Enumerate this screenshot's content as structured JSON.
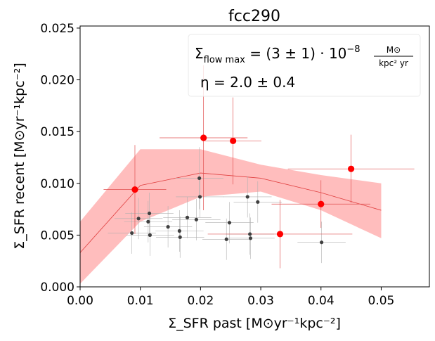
{
  "chart_data": {
    "type": "scatter",
    "title": "fcc290",
    "xlabel": "Σ_SFR past [M⊙yr⁻¹kpc⁻²]",
    "ylabel": "Σ_SFR recent [M⊙yr⁻¹kpc⁻²]",
    "xlim": [
      0.0,
      0.058
    ],
    "ylim": [
      0.0,
      0.0252
    ],
    "xticks": [
      "0.00",
      "0.01",
      "0.02",
      "0.03",
      "0.04",
      "0.05"
    ],
    "yticks": [
      "0.000",
      "0.005",
      "0.010",
      "0.015",
      "0.020",
      "0.025"
    ],
    "annotation": {
      "formula_prefix": "Σ",
      "formula_sub": "flow max",
      "formula_mid": " = (3 ± 1) · 10",
      "formula_exp": "−8",
      "formula_num": "M⊙",
      "formula_den": "kpc² yr",
      "eta_text": "η = 2.0 ± 0.4"
    },
    "model_line": {
      "x": [
        0.0,
        0.01,
        0.02,
        0.03,
        0.04,
        0.05
      ],
      "y": [
        0.0033,
        0.0098,
        0.011,
        0.0105,
        0.0091,
        0.0074
      ]
    },
    "model_band": {
      "x": [
        0.0,
        0.01,
        0.02,
        0.03,
        0.04,
        0.05
      ],
      "upper": [
        0.0063,
        0.0133,
        0.0133,
        0.0118,
        0.0108,
        0.01
      ],
      "lower": [
        0.0003,
        0.0063,
        0.0087,
        0.0092,
        0.0074,
        0.0047
      ]
    },
    "series": [
      {
        "name": "red points",
        "color": "#ff0000",
        "points": [
          {
            "x": 0.0091,
            "y": 0.0094,
            "xerr": 0.0052,
            "yerr": 0.0043
          },
          {
            "x": 0.0205,
            "y": 0.0144,
            "xerr": 0.0073,
            "yerr": 0.007
          },
          {
            "x": 0.0254,
            "y": 0.0141,
            "xerr": 0.0047,
            "yerr": 0.0042
          },
          {
            "x": 0.0332,
            "y": 0.0051,
            "xerr": 0.012,
            "yerr": 0.0033
          },
          {
            "x": 0.04,
            "y": 0.008,
            "xerr": 0.0082,
            "yerr": 0.0023
          },
          {
            "x": 0.045,
            "y": 0.0114,
            "xerr": 0.0105,
            "yerr": 0.0033
          }
        ]
      },
      {
        "name": "grey points",
        "color": "#404040",
        "points": [
          {
            "x": 0.0086,
            "y": 0.0052,
            "xerr": 0.004,
            "yerr": 0.002
          },
          {
            "x": 0.0097,
            "y": 0.0066,
            "xerr": 0.004,
            "yerr": 0.002
          },
          {
            "x": 0.0113,
            "y": 0.0063,
            "xerr": 0.004,
            "yerr": 0.002
          },
          {
            "x": 0.0115,
            "y": 0.0071,
            "xerr": 0.004,
            "yerr": 0.002
          },
          {
            "x": 0.0116,
            "y": 0.005,
            "xerr": 0.004,
            "yerr": 0.002
          },
          {
            "x": 0.0146,
            "y": 0.0058,
            "xerr": 0.004,
            "yerr": 0.002
          },
          {
            "x": 0.0165,
            "y": 0.0054,
            "xerr": 0.004,
            "yerr": 0.002
          },
          {
            "x": 0.0166,
            "y": 0.0048,
            "xerr": 0.004,
            "yerr": 0.002
          },
          {
            "x": 0.0178,
            "y": 0.0067,
            "xerr": 0.004,
            "yerr": 0.002
          },
          {
            "x": 0.0193,
            "y": 0.0065,
            "xerr": 0.004,
            "yerr": 0.002
          },
          {
            "x": 0.0198,
            "y": 0.0105,
            "xerr": 0.004,
            "yerr": 0.003
          },
          {
            "x": 0.0199,
            "y": 0.0087,
            "xerr": 0.004,
            "yerr": 0.002
          },
          {
            "x": 0.0243,
            "y": 0.0046,
            "xerr": 0.004,
            "yerr": 0.002
          },
          {
            "x": 0.0248,
            "y": 0.0062,
            "xerr": 0.004,
            "yerr": 0.002
          },
          {
            "x": 0.0278,
            "y": 0.0087,
            "xerr": 0.004,
            "yerr": 0.002
          },
          {
            "x": 0.0282,
            "y": 0.0051,
            "xerr": 0.004,
            "yerr": 0.002
          },
          {
            "x": 0.0283,
            "y": 0.0047,
            "xerr": 0.004,
            "yerr": 0.002
          },
          {
            "x": 0.0295,
            "y": 0.0082,
            "xerr": 0.004,
            "yerr": 0.002
          },
          {
            "x": 0.0401,
            "y": 0.0043,
            "xerr": 0.004,
            "yerr": 0.002
          }
        ]
      }
    ],
    "colors": {
      "band": "#ffbdbd",
      "line": "#e04040",
      "red_marker": "#ff0000",
      "grey_marker": "#404040",
      "grey_err": "#b0b0b0",
      "red_err": "#e05050"
    }
  }
}
